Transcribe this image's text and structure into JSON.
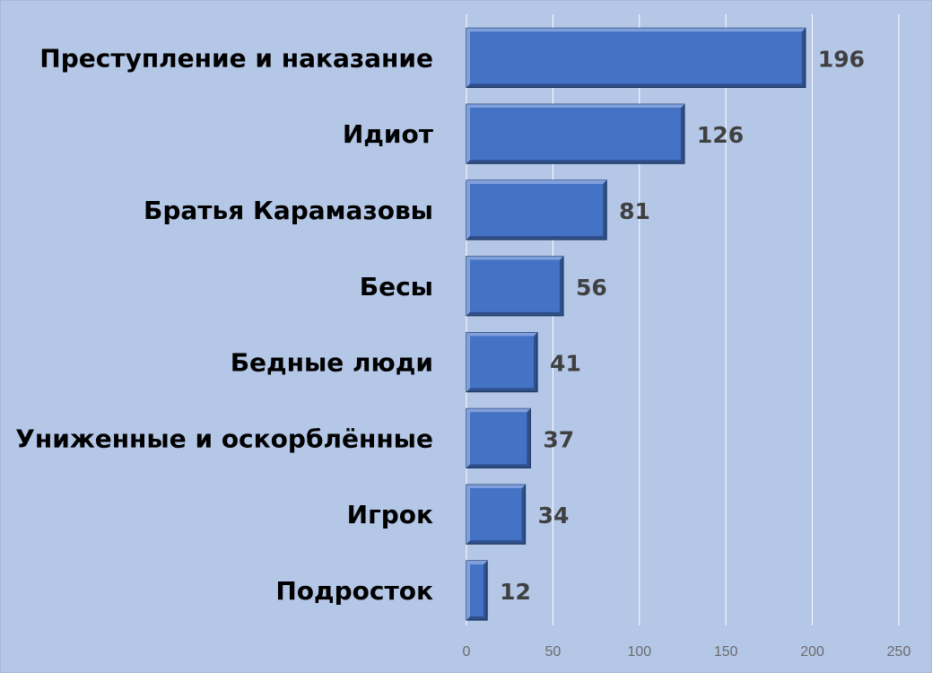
{
  "chart_data": {
    "type": "bar",
    "orientation": "horizontal",
    "title": "",
    "xlabel": "",
    "ylabel": "",
    "categories": [
      "Преступление и наказание",
      "Идиот",
      "Братья Карамазовы",
      "Бесы",
      "Бедные люди",
      "Униженные и оскорблённые",
      "Игрок",
      "Подросток"
    ],
    "values": [
      196,
      126,
      81,
      56,
      41,
      37,
      34,
      12
    ],
    "xlim": [
      0,
      250
    ],
    "x_ticks": [
      0,
      50,
      100,
      150,
      200,
      250
    ],
    "grid": "vertical",
    "legend": "none",
    "colors": {
      "background": "#b4c7e7",
      "bar_fill": "#4472c4",
      "bar_light": "#7fa0dd",
      "bar_dark": "#2e4f8a",
      "bar_edge": "#1f3763",
      "gridline": "#ffffff",
      "category_text": "#000000",
      "data_label_text": "#404040",
      "tick_text": "#6b6b6b"
    }
  }
}
